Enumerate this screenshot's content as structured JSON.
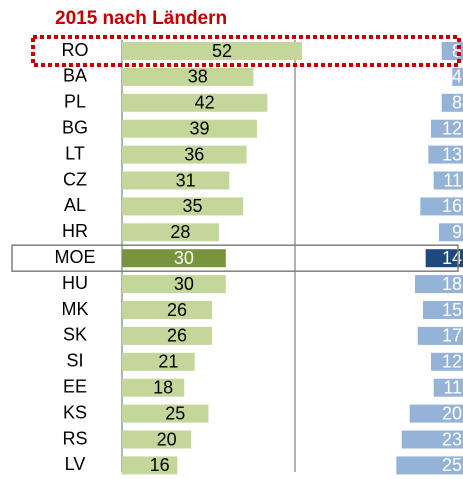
{
  "chart_data": {
    "type": "bar",
    "orientation": "horizontal",
    "title": "2015 nach Ländern",
    "categories": [
      "RO",
      "BA",
      "PL",
      "BG",
      "LT",
      "CZ",
      "AL",
      "HR",
      "MOE",
      "HU",
      "MK",
      "SK",
      "SI",
      "EE",
      "KS",
      "RS",
      "LV"
    ],
    "series": [
      {
        "values": [
          52,
          38,
          42,
          39,
          36,
          31,
          35,
          28,
          30,
          30,
          26,
          26,
          21,
          18,
          25,
          20,
          16
        ],
        "colors": [
          "#c4d79b",
          "#c4d79b",
          "#c4d79b",
          "#c4d79b",
          "#c4d79b",
          "#c4d79b",
          "#c4d79b",
          "#c4d79b",
          "#77933c",
          "#c4d79b",
          "#c4d79b",
          "#c4d79b",
          "#c4d79b",
          "#c4d79b",
          "#c4d79b",
          "#c4d79b",
          "#c4d79b"
        ],
        "xlim": [
          0,
          50
        ]
      },
      {
        "values": [
          8,
          4,
          8,
          12,
          13,
          11,
          16,
          9,
          14,
          18,
          15,
          17,
          12,
          11,
          20,
          23,
          25
        ],
        "colors": [
          "#95b3d7",
          "#95b3d7",
          "#95b3d7",
          "#95b3d7",
          "#95b3d7",
          "#95b3d7",
          "#95b3d7",
          "#95b3d7",
          "#1f497d",
          "#95b3d7",
          "#95b3d7",
          "#95b3d7",
          "#95b3d7",
          "#95b3d7",
          "#95b3d7",
          "#95b3d7",
          "#95b3d7"
        ],
        "xlim": [
          0,
          30
        ]
      }
    ]
  }
}
